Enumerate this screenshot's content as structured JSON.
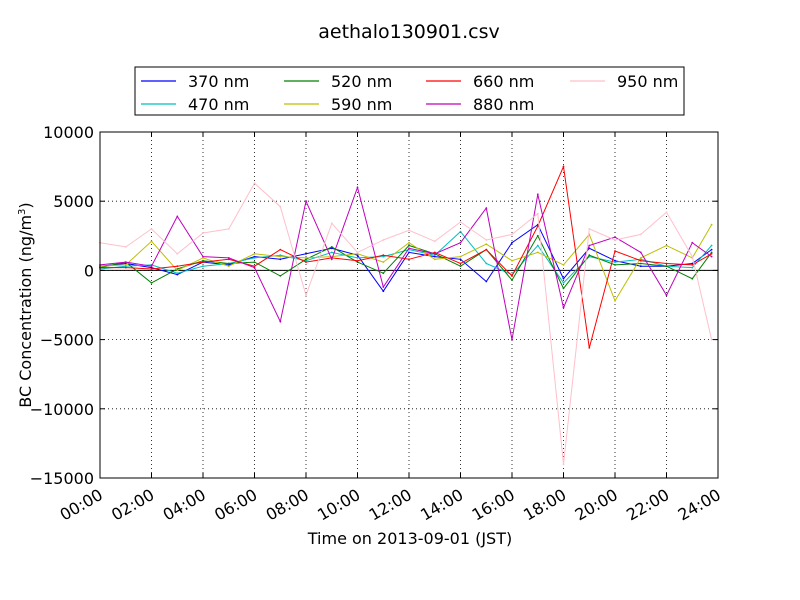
{
  "chart_data": {
    "type": "line",
    "title": "aethalo130901.csv",
    "xlabel": "Time on 2013-09-01 (JST)",
    "ylabel_main": "BC Concentration (ng/m",
    "ylabel_sup": "3",
    "ylabel_close": ")",
    "ylim": [
      -15000,
      10000
    ],
    "xlim_hours": [
      0,
      24
    ],
    "grid": true,
    "grid_style": "dotted",
    "legend_position": "top",
    "x_ticks": [
      {
        "hour": 0,
        "label": "00:00"
      },
      {
        "hour": 2,
        "label": "02:00"
      },
      {
        "hour": 4,
        "label": "04:00"
      },
      {
        "hour": 6,
        "label": "06:00"
      },
      {
        "hour": 8,
        "label": "08:00"
      },
      {
        "hour": 10,
        "label": "10:00"
      },
      {
        "hour": 12,
        "label": "12:00"
      },
      {
        "hour": 14,
        "label": "14:00"
      },
      {
        "hour": 16,
        "label": "16:00"
      },
      {
        "hour": 18,
        "label": "18:00"
      },
      {
        "hour": 20,
        "label": "20:00"
      },
      {
        "hour": 22,
        "label": "22:00"
      },
      {
        "hour": 24,
        "label": "24:00"
      }
    ],
    "y_ticks": [
      {
        "value": 10000,
        "label": "10000"
      },
      {
        "value": 5000,
        "label": "5000"
      },
      {
        "value": 0,
        "label": "0"
      },
      {
        "value": -5000,
        "label": "−5000"
      },
      {
        "value": -10000,
        "label": "−10000"
      },
      {
        "value": -15000,
        "label": "−15000"
      }
    ],
    "x_hours": [
      0.0,
      1.0,
      2.0,
      3.0,
      4.0,
      5.0,
      6.0,
      7.0,
      8.0,
      9.0,
      10.0,
      11.0,
      12.0,
      13.0,
      14.0,
      15.0,
      16.0,
      17.0,
      18.0,
      19.0,
      20.0,
      21.0,
      22.0,
      23.0,
      23.75
    ],
    "series": [
      {
        "name": "370 nm",
        "color": "#0000ff",
        "values": [
          300,
          500,
          200,
          -300,
          600,
          400,
          1000,
          800,
          1200,
          1600,
          1100,
          -1500,
          1300,
          1000,
          800,
          -800,
          2000,
          3300,
          -600,
          1600,
          700,
          300,
          300,
          500,
          1500
        ]
      },
      {
        "name": "470 nm",
        "color": "#00bfbf",
        "values": [
          100,
          300,
          400,
          -200,
          300,
          500,
          900,
          1100,
          700,
          1300,
          900,
          1000,
          1500,
          1100,
          2800,
          500,
          -300,
          1800,
          -900,
          1000,
          600,
          800,
          300,
          200,
          1800
        ]
      },
      {
        "name": "520 nm",
        "color": "#008000",
        "values": [
          200,
          600,
          -900,
          100,
          700,
          500,
          600,
          -400,
          800,
          1700,
          600,
          -200,
          1800,
          1200,
          300,
          1500,
          -700,
          2500,
          -1300,
          1100,
          400,
          500,
          300,
          -600,
          1300
        ]
      },
      {
        "name": "590 nm",
        "color": "#bfbf00",
        "values": [
          300,
          400,
          2100,
          0,
          900,
          300,
          1200,
          1000,
          900,
          1000,
          1200,
          600,
          2000,
          800,
          1000,
          1900,
          700,
          1300,
          400,
          2600,
          -2200,
          900,
          1800,
          900,
          3300
        ]
      },
      {
        "name": "660 nm",
        "color": "#ff0000",
        "values": [
          200,
          200,
          100,
          300,
          600,
          800,
          300,
          1500,
          600,
          900,
          700,
          1100,
          800,
          1300,
          500,
          1500,
          -400,
          3200,
          7500,
          -5600,
          1400,
          700,
          500,
          400,
          1200
        ]
      },
      {
        "name": "880 nm",
        "color": "#bf00bf",
        "values": [
          400,
          600,
          300,
          3900,
          1000,
          900,
          200,
          -3700,
          5000,
          800,
          6000,
          -1200,
          1600,
          1200,
          2000,
          4500,
          -5000,
          5500,
          -2700,
          1800,
          2400,
          1300,
          -1800,
          2000,
          1000
        ]
      },
      {
        "name": "950 nm",
        "color": "#ffc0cb",
        "values": [
          2000,
          1700,
          3000,
          1200,
          2700,
          3000,
          6300,
          4600,
          -1800,
          3400,
          1300,
          2200,
          2900,
          2100,
          3500,
          2200,
          2600,
          4100,
          -14000,
          3000,
          2200,
          2600,
          4200,
          1000,
          -5000
        ]
      }
    ]
  }
}
